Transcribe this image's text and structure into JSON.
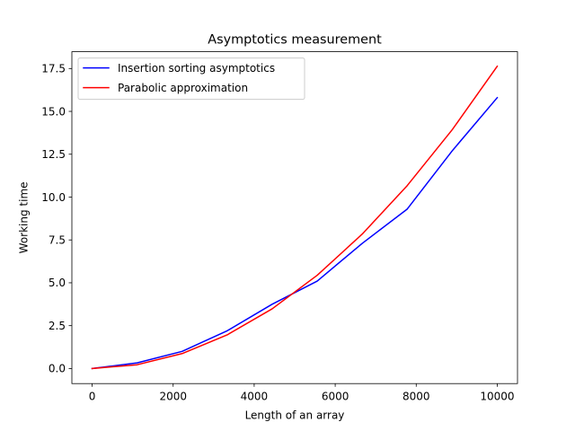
{
  "chart_data": {
    "type": "line",
    "title": "Asymptotics measurement",
    "xlabel": "Length of an array",
    "ylabel": "Working time",
    "xlim": [
      -500,
      10500
    ],
    "ylim": [
      -0.88,
      18.48
    ],
    "xticks": [
      0,
      2000,
      4000,
      6000,
      8000,
      10000
    ],
    "xtick_labels": [
      "0",
      "2000",
      "4000",
      "6000",
      "8000",
      "10000"
    ],
    "yticks": [
      0.0,
      2.5,
      5.0,
      7.5,
      10.0,
      12.5,
      15.0,
      17.5
    ],
    "ytick_labels": [
      "0.0",
      "2.5",
      "5.0",
      "7.5",
      "10.0",
      "12.5",
      "15.0",
      "17.5"
    ],
    "grid": false,
    "legend_position": "top-left",
    "series": [
      {
        "name": "Insertion sorting asymptotics",
        "color": "#0000ff",
        "x": [
          0,
          1111,
          2222,
          3333,
          4444,
          5556,
          6667,
          7778,
          8889,
          10000
        ],
        "y": [
          0.0,
          0.33,
          1.0,
          2.2,
          3.75,
          5.1,
          7.3,
          9.3,
          12.7,
          15.8
        ]
      },
      {
        "name": "Parabolic approximation",
        "color": "#ff0000",
        "x": [
          0,
          1111,
          2222,
          3333,
          4444,
          5556,
          6667,
          7778,
          8889,
          10000
        ],
        "y": [
          0.0,
          0.22,
          0.87,
          1.96,
          3.48,
          5.44,
          7.84,
          10.67,
          13.93,
          17.63
        ]
      }
    ]
  }
}
